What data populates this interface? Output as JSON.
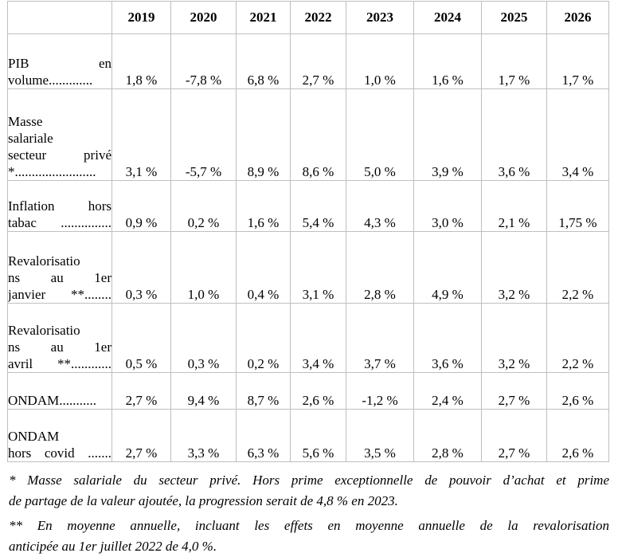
{
  "table": {
    "years": [
      "2019",
      "2020",
      "2021",
      "2022",
      "2023",
      "2024",
      "2025",
      "2026"
    ],
    "rows": [
      {
        "id": "pib-en-volume",
        "label": "PIB en volume",
        "label_lines": [
          "PIB en",
          "volume............."
        ],
        "values": [
          "1,8 %",
          "-7,8 %",
          "6,8 %",
          "2,7 %",
          "1,0 %",
          "1,6 %",
          "1,7 %",
          "1,7 %"
        ]
      },
      {
        "id": "masse-salariale-secteur-prive",
        "label": "Masse salariale secteur privé *",
        "label_lines": [
          "Masse",
          "salariale",
          "secteur privé",
          "*........................"
        ],
        "values": [
          "3,1 %",
          "-5,7 %",
          "8,9 %",
          "8,6 %",
          "5,0 %",
          "3,9 %",
          "3,6 %",
          "3,4 %"
        ]
      },
      {
        "id": "inflation-hors-tabac",
        "label": "Inflation hors tabac",
        "label_lines": [
          "Inflation hors",
          "tabac ..............."
        ],
        "values": [
          "0,9 %",
          "0,2 %",
          "1,6 %",
          "5,4 %",
          "4,3 %",
          "3,0 %",
          "2,1 %",
          "1,75 %"
        ]
      },
      {
        "id": "revalorisations-1er-janvier",
        "label": "Revalorisations au 1er janvier **",
        "label_lines": [
          "Revalorisatio",
          "ns au 1er",
          "janvier **........"
        ],
        "values": [
          "0,3 %",
          "1,0 %",
          "0,4 %",
          "3,1 %",
          "2,8 %",
          "4,9 %",
          "3,2 %",
          "2,2 %"
        ]
      },
      {
        "id": "revalorisations-1er-avril",
        "label": "Revalorisations au 1er avril **",
        "label_lines": [
          "Revalorisatio",
          "ns au 1er",
          "avril **............"
        ],
        "values": [
          "0,5 %",
          "0,3 %",
          "0,2 %",
          "3,4 %",
          "3,7 %",
          "3,6 %",
          "3,2 %",
          "2,2 %"
        ]
      },
      {
        "id": "ondam",
        "label": "ONDAM",
        "label_lines": [
          "ONDAM..........."
        ],
        "values": [
          "2,7 %",
          "9,4 %",
          "8,7 %",
          "2,6 %",
          "-1,2 %",
          "2,4 %",
          "2,7 %",
          "2,6 %"
        ]
      },
      {
        "id": "ondam-hors-covid",
        "label": "ONDAM hors covid",
        "label_lines": [
          "ONDAM",
          "hors covid ......."
        ],
        "values": [
          "2,7 %",
          "3,3 %",
          "6,3 %",
          "5,6 %",
          "3,5 %",
          "2,8 %",
          "2,7 %",
          "2,6 %"
        ]
      }
    ]
  },
  "footnotes": [
    {
      "id": "footnote-masse-salariale",
      "lines": [
        "* Masse salariale du secteur privé. Hors prime exceptionnelle de pouvoir d’achat et prime",
        "de partage de la valeur ajoutée, la progression serait de 4,8 % en 2023."
      ]
    },
    {
      "id": "footnote-moyenne-annuelle",
      "lines": [
        "** En moyenne annuelle, incluant les effets en moyenne annuelle de la revalorisation",
        "anticipée au 1er juillet 2022 de 4,0 %."
      ]
    }
  ],
  "colors": {
    "grid_border": "#bfbfbf",
    "text": "#000000",
    "background": "#ffffff"
  }
}
